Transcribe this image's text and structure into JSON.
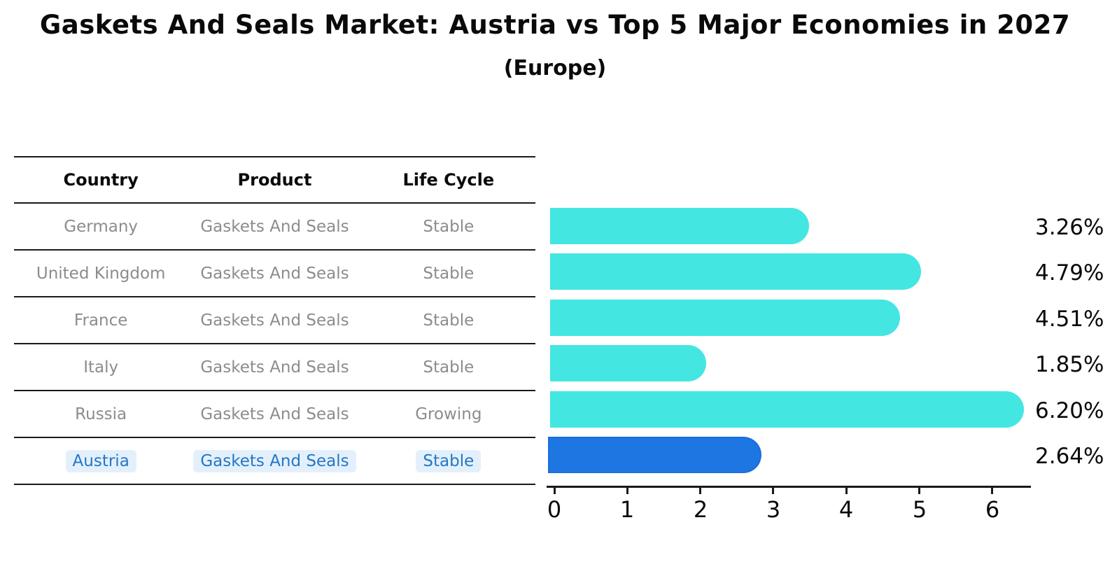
{
  "header": {
    "title": "Gaskets And Seals Market: Austria vs Top 5 Major Economies in 2027",
    "subtitle": "(Europe)"
  },
  "table": {
    "headers": {
      "country": "Country",
      "product": "Product",
      "life_cycle": "Life Cycle"
    },
    "rows": [
      {
        "country": "Germany",
        "product": "Gaskets And Seals",
        "life_cycle": "Stable",
        "highlighted": false
      },
      {
        "country": "United Kingdom",
        "product": "Gaskets And Seals",
        "life_cycle": "Stable",
        "highlighted": false
      },
      {
        "country": "France",
        "product": "Gaskets And Seals",
        "life_cycle": "Stable",
        "highlighted": false
      },
      {
        "country": "Italy",
        "product": "Gaskets And Seals",
        "life_cycle": "Stable",
        "highlighted": false
      },
      {
        "country": "Russia",
        "product": "Gaskets And Seals",
        "life_cycle": "Growing",
        "highlighted": false
      },
      {
        "country": "Austria",
        "product": "Gaskets And Seals",
        "life_cycle": "Stable",
        "highlighted": true
      }
    ]
  },
  "chart_data": {
    "type": "bar",
    "orientation": "horizontal",
    "title": "Gaskets And Seals Market: Austria vs Top 5 Major Economies in 2027 (Europe)",
    "categories": [
      "Germany",
      "United Kingdom",
      "France",
      "Italy",
      "Russia",
      "Austria"
    ],
    "values": [
      3.26,
      4.79,
      4.51,
      1.85,
      6.2,
      2.64
    ],
    "value_labels": [
      "3.26%",
      "4.79%",
      "4.51%",
      "1.85%",
      "6.20%",
      "2.64%"
    ],
    "x_ticks": [
      "0",
      "1",
      "2",
      "3",
      "4",
      "5",
      "6"
    ],
    "xlim": [
      0,
      6.5
    ],
    "grid": false,
    "highlight_index": 5
  },
  "colors": {
    "bar": "#44e6e2",
    "highlight_bar": "#1e76e3",
    "highlight_bar_border": "#1a66d6",
    "highlight_text": "#2577c4",
    "highlight_chip_bg": "#e3f0fc",
    "row_text": "#8c8c8c",
    "axis": "#1a1a1a"
  }
}
